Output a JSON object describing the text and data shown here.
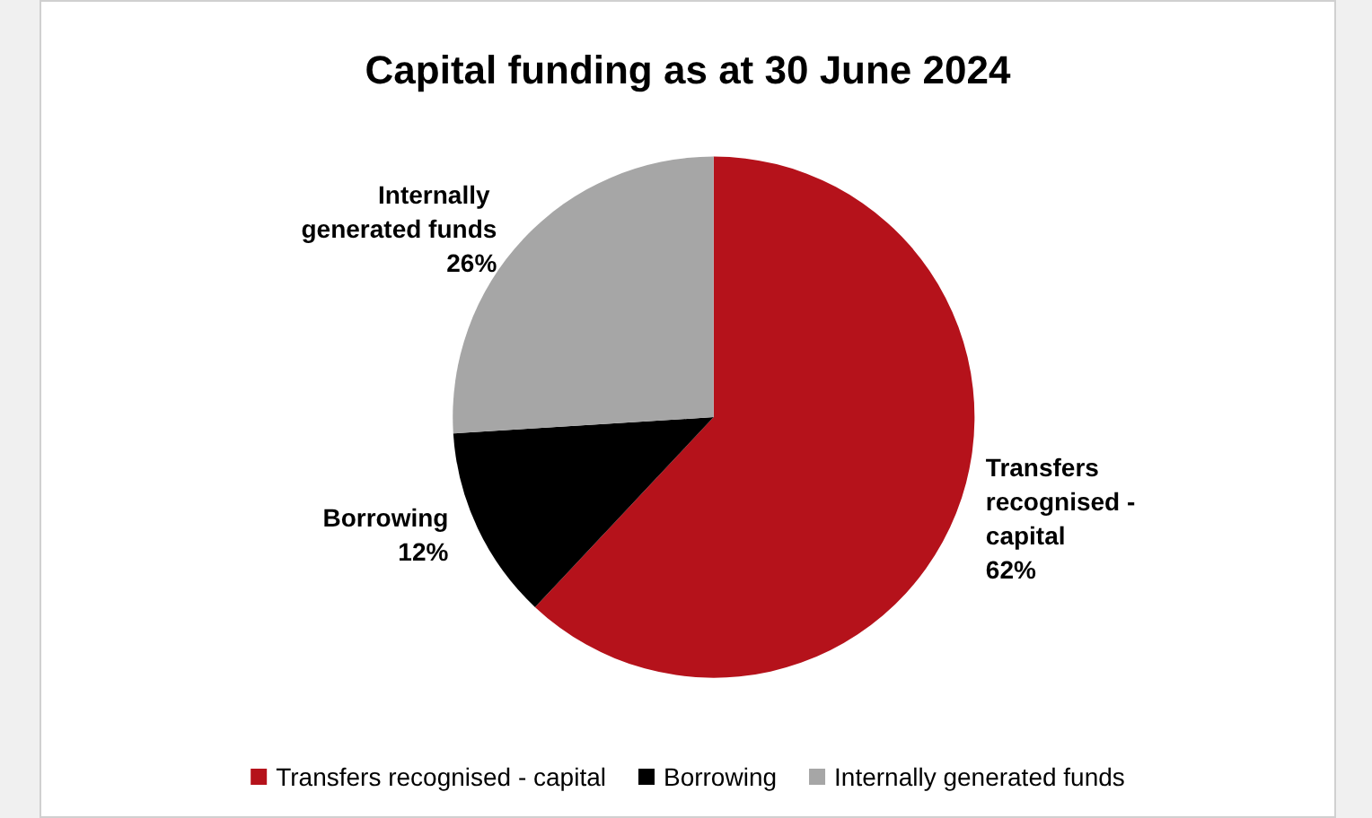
{
  "chart_data": {
    "type": "pie",
    "title": "Capital funding as at 30 June 2024",
    "categories": [
      "Transfers recognised - capital",
      "Borrowing",
      "Internally generated funds"
    ],
    "values": [
      62,
      12,
      26
    ],
    "value_labels": [
      "62%",
      "12%",
      "26%"
    ],
    "colors": [
      "#b5121b",
      "#000000",
      "#a6a6a6"
    ],
    "legend": "bottom"
  }
}
